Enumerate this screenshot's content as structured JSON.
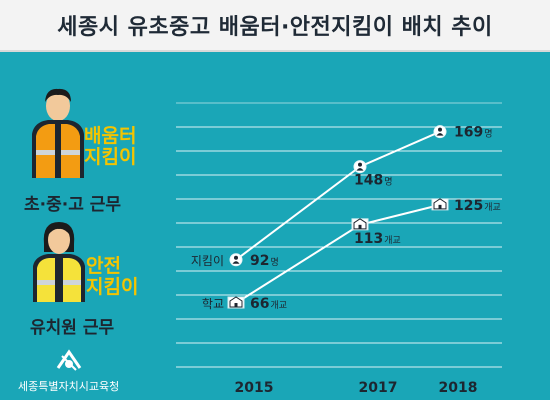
{
  "title": "세종시 유초중고 배움터·안전지킴이 배치 추이",
  "people": {
    "helper": {
      "role_line1": "배움터",
      "role_line2": "지킴이",
      "duty": "초·중·고 근무"
    },
    "safety": {
      "role_line1": "안전",
      "role_line2": "지킴이",
      "duty": "유치원 근무"
    }
  },
  "footer": {
    "org": "세종특별자치시교육청"
  },
  "colors": {
    "background": "#1aa6b7",
    "vest": "#f5c400",
    "line": "#ffffff",
    "text": "#1d2630"
  },
  "chart_data": {
    "type": "line",
    "x": [
      "2015",
      "2017",
      "2018"
    ],
    "series": [
      {
        "name": "지킴이",
        "values": [
          92,
          148,
          169
        ],
        "unit": "명",
        "icon": "person-icon"
      },
      {
        "name": "학교",
        "values": [
          66,
          113,
          125
        ],
        "unit": "개교",
        "icon": "school-icon"
      }
    ],
    "grid": true
  }
}
